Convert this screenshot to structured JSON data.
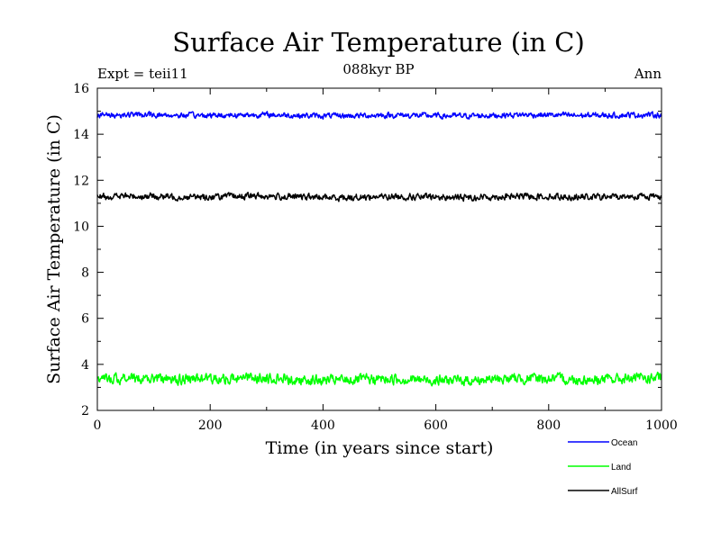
{
  "chart_data": {
    "type": "line",
    "title": "Surface Air Temperature (in C)",
    "subtitle": "088kyr BP",
    "left_note": "Expt = teii11",
    "right_note": "Ann",
    "xlabel": "Time (in years since start)",
    "ylabel": "Surface Air Temperature (in C)",
    "xlim": [
      0,
      1000
    ],
    "ylim": [
      2,
      16
    ],
    "xticks": [
      0,
      200,
      400,
      600,
      800,
      1000
    ],
    "yticks": [
      2,
      4,
      6,
      8,
      10,
      12,
      14,
      16
    ],
    "grid": false,
    "legend_position": "bottom-right, below plot",
    "series": [
      {
        "name": "Ocean",
        "color": "#0000ff",
        "mean": 14.82,
        "amplitude": 0.12,
        "x_start": 0,
        "x_end": 1000
      },
      {
        "name": "Land",
        "color": "#00ff00",
        "mean": 3.35,
        "amplitude": 0.22,
        "x_start": 0,
        "x_end": 1000
      },
      {
        "name": "AllSurf",
        "color": "#000000",
        "mean": 11.28,
        "amplitude": 0.14,
        "x_start": 0,
        "x_end": 1000
      }
    ]
  }
}
